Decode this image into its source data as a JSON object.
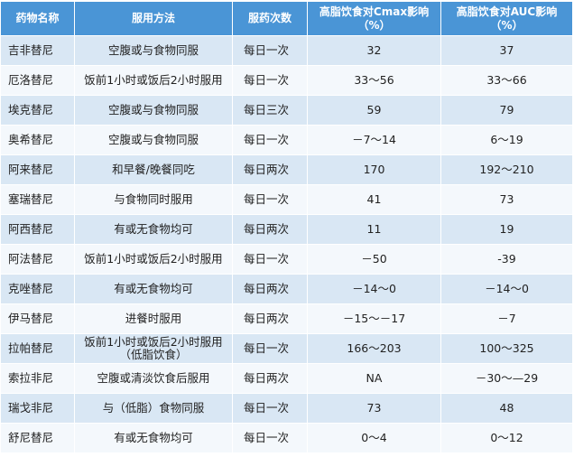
{
  "table": {
    "header": [
      "药物名称",
      "服用方法",
      "服药次数",
      "高脂饮食对Cmax影响（%）",
      "高脂饮食对AUC影响（%）"
    ],
    "rows": [
      [
        "吉非替尼",
        "空腹或与食物同服",
        "每日一次",
        "32",
        "37"
      ],
      [
        "厄洛替尼",
        "饭前1小时或饭后2小时服用",
        "每日一次",
        "33～56",
        "33～66"
      ],
      [
        "埃克替尼",
        "空腹或与食物同服",
        "每日三次",
        "59",
        "79"
      ],
      [
        "奥希替尼",
        "空腹或与食物同服",
        "每日一次",
        "－7～14",
        "6～19"
      ],
      [
        "阿来替尼",
        "和早餐/晚餐同吃",
        "每日两次",
        "170",
        "192～210"
      ],
      [
        "塞瑞替尼",
        "与食物同时服用",
        "每日一次",
        "41",
        "73"
      ],
      [
        "阿西替尼",
        "有或无食物均可",
        "每日两次",
        "11",
        "19"
      ],
      [
        "阿法替尼",
        "饭前1小时或饭后2小时服用",
        "每日一次",
        "－50",
        "-39"
      ],
      [
        "克唑替尼",
        "有或无食物均可",
        "每日两次",
        "－14～0",
        "－14～0"
      ],
      [
        "伊马替尼",
        "进餐时服用",
        "每日两次",
        "－15～－17",
        "－7"
      ],
      [
        "拉帕替尼",
        "饭前1小时或饭后2小时服用（低脂饮食）",
        "每日一次",
        "166～203",
        "100～325"
      ],
      [
        "索拉非尼",
        "空腹或清淡饮食后服用",
        "每日两次",
        "NA",
        "－30～—29"
      ],
      [
        "瑞戈非尼",
        "与（低脂）食物同服",
        "每日一次",
        "73",
        "48"
      ],
      [
        "舒尼替尼",
        "有或无食物均可",
        "每日一次",
        "0～4",
        "0～12"
      ]
    ]
  }
}
